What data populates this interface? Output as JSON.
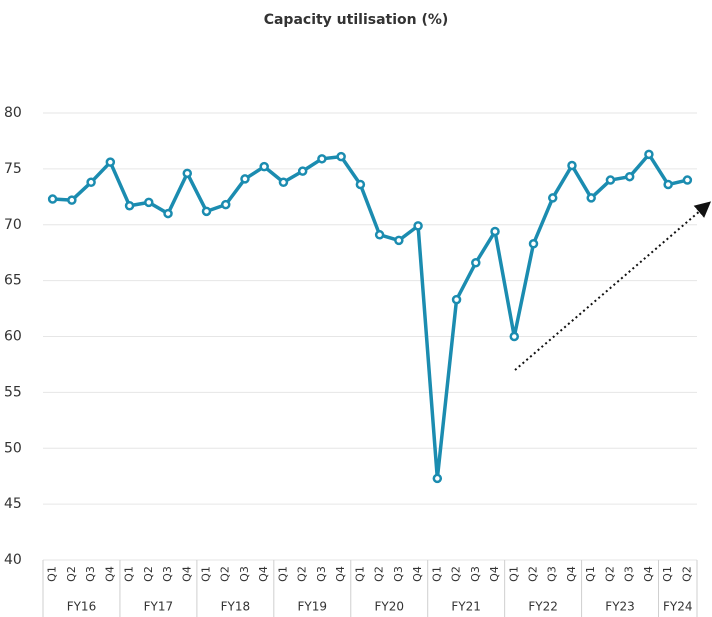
{
  "chart_data": {
    "type": "line",
    "title": "Capacity utilisation (%)",
    "categories": [
      "Q1",
      "Q2",
      "Q3",
      "Q4",
      "Q1",
      "Q2",
      "Q3",
      "Q4",
      "Q1",
      "Q2",
      "Q3",
      "Q4",
      "Q1",
      "Q2",
      "Q3",
      "Q4",
      "Q1",
      "Q2",
      "Q3",
      "Q4",
      "Q1",
      "Q2",
      "Q3",
      "Q4",
      "Q1",
      "Q2",
      "Q3",
      "Q4",
      "Q1",
      "Q2",
      "Q3",
      "Q4",
      "Q1",
      "Q2"
    ],
    "group_labels": [
      "FY16",
      "FY17",
      "FY18",
      "FY19",
      "FY20",
      "FY21",
      "FY22",
      "FY23",
      "FY24"
    ],
    "series": [
      {
        "name": "Capacity utilisation",
        "color": "#1b8cb0",
        "values": [
          72.3,
          72.2,
          73.8,
          75.6,
          71.7,
          72.0,
          71.0,
          74.6,
          71.2,
          71.8,
          74.1,
          75.2,
          73.8,
          74.8,
          75.9,
          76.1,
          73.6,
          69.1,
          68.6,
          69.9,
          47.3,
          63.3,
          66.6,
          69.4,
          60.0,
          68.3,
          72.4,
          75.3,
          72.4,
          74.0,
          74.3,
          76.3,
          73.6,
          74.0
        ]
      }
    ],
    "ylim": [
      40,
      80
    ],
    "yticks": [
      40,
      45,
      50,
      55,
      60,
      65,
      70,
      75,
      80
    ],
    "grid": true
  }
}
